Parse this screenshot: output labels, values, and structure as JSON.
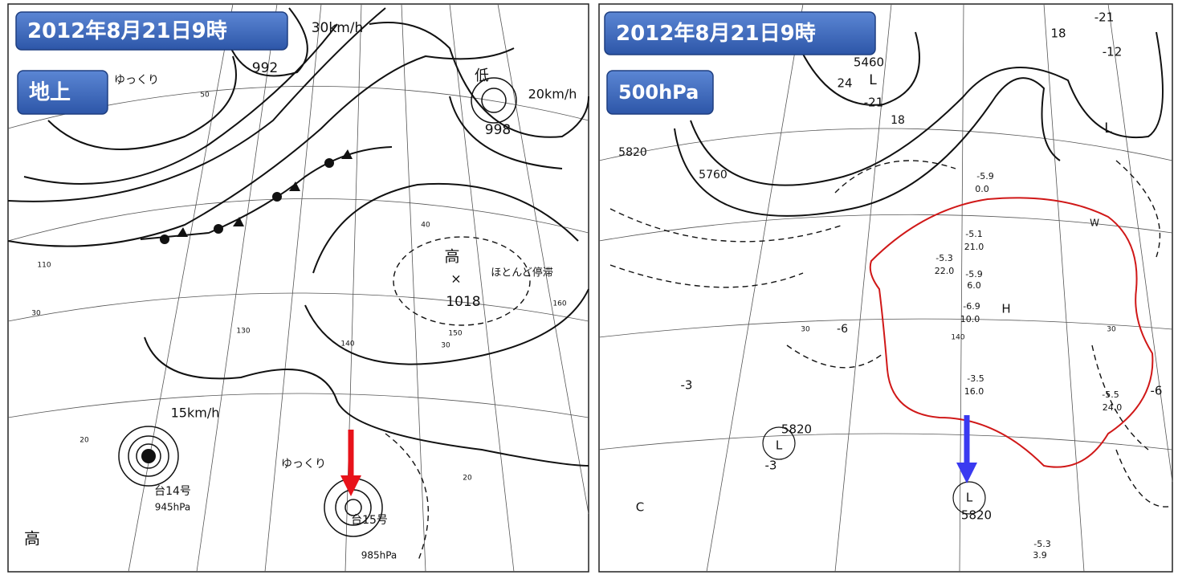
{
  "left_map": {
    "badges": [
      "2012年8月21日9時",
      "地上"
    ],
    "labels": [
      "30km/h",
      "992",
      "ゆっくり",
      "低",
      "998",
      "20km/h",
      "高",
      "×",
      "1018",
      "ほとんど停滞",
      "15km/h",
      "ゆっくり",
      "台14号",
      "945hPa",
      "台15号",
      "985hPa",
      "高",
      "50",
      "40",
      "30",
      "30",
      "20",
      "20",
      "110",
      "150",
      "160",
      "140",
      "130"
    ]
  },
  "right_map": {
    "badges": [
      "2012年8月21日9時",
      "500hPa"
    ],
    "labels": [
      "5460",
      "L",
      "24",
      "-21",
      "18",
      "-21",
      "18",
      "-12",
      "L",
      "5820",
      "5760",
      "H",
      "5820",
      "L",
      "-3",
      "L",
      "5820",
      "W",
      "C",
      "-6",
      "-3",
      "-3.5",
      "16.0",
      "-5.5",
      "24.0",
      "-5.3",
      "3.9",
      "-5.9",
      "0.0",
      "-5.1",
      "21.0",
      "-5.3",
      "22.0",
      "-5.9",
      "6.0",
      "-6.9",
      "10.0",
      "-6",
      "30",
      "30",
      "140"
    ]
  }
}
